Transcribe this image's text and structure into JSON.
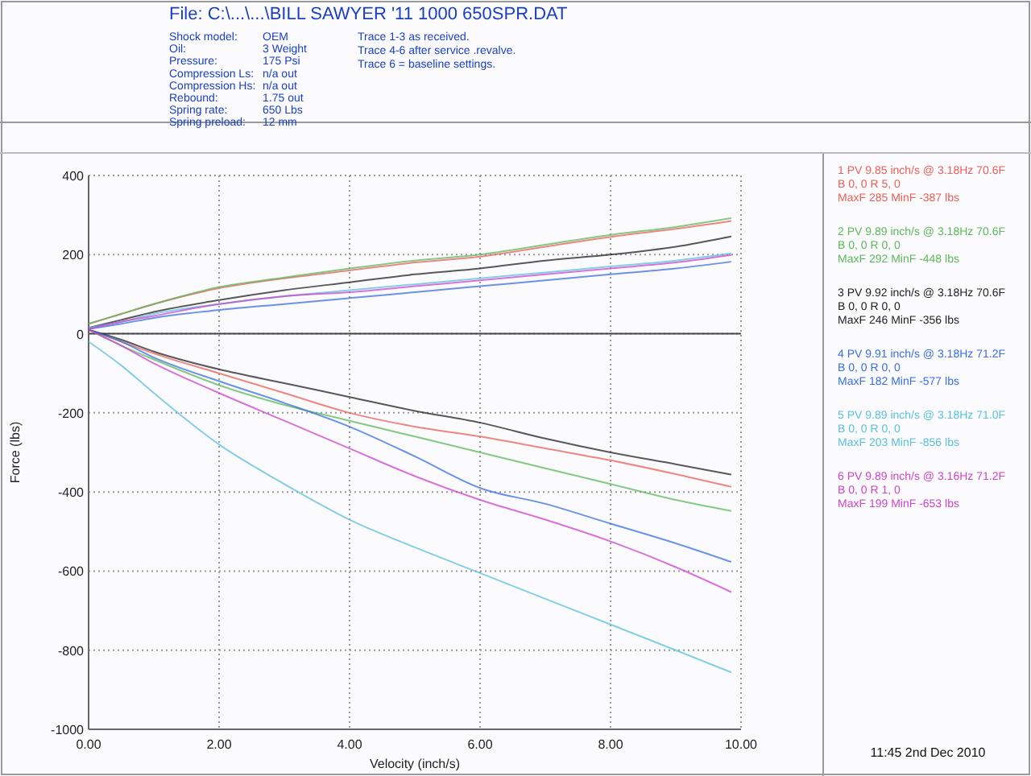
{
  "chart_data": {
    "type": "line",
    "title": "File: C:\\...\\...\\BILL SAWYER '11 1000 650SPR.DAT",
    "subtitle": "Trace 1-3 as received.\nTrace 4-6 after service .revalve.\nTrace 6 = baseline settings.",
    "xlabel": "Velocity (inch/s)",
    "ylabel": "Force (lbs)",
    "annotations": [
      "Shock model: OEM",
      "Oil: 3 Weight",
      "Pressure: 175 Psi",
      "Compression Ls: n/a out",
      "Compression Hs: n/a out",
      "Rebound: 1.75 out",
      "Spring rate: 650 Lbs",
      "Spring preload: 12 mm",
      "11:45  2nd Dec 2010"
    ],
    "xlim": [
      0,
      10
    ],
    "ylim": [
      -1000,
      400
    ],
    "xticks": [
      {
        "value": 0,
        "label": "0.00"
      },
      {
        "value": 2,
        "label": "2.00"
      },
      {
        "value": 4,
        "label": "4.00"
      },
      {
        "value": 6,
        "label": "6.00"
      },
      {
        "value": 8,
        "label": "8.00"
      },
      {
        "value": 10,
        "label": "10.00"
      }
    ],
    "yticks": [
      -1000,
      -800,
      -600,
      -400,
      -200,
      0,
      200,
      400
    ],
    "grid": true,
    "legend": "right",
    "marker": "none",
    "line_style": "solid",
    "ref_lines": [
      {
        "axis": "y",
        "value": 0,
        "color": "#444444"
      }
    ],
    "series": [
      {
        "name": "1 PV 9.85 inch/s @ 3.18Hz 70.6F\nB  0,  0   R  5,  0\nMaxF  285  MinF  -387 lbs",
        "color": "#e8605a",
        "x": [
          0,
          0.5,
          1,
          2,
          3,
          4,
          5,
          6,
          7,
          8,
          9,
          9.85
        ],
        "values": [
          25,
          50,
          75,
          115,
          140,
          160,
          180,
          195,
          220,
          245,
          265,
          285
        ]
      },
      {
        "color": "#e8605a",
        "x": [
          0,
          0.5,
          1,
          2,
          3,
          4,
          5,
          6,
          7,
          8,
          9,
          9.85
        ],
        "values": [
          10,
          -20,
          -50,
          -100,
          -150,
          -200,
          -235,
          -260,
          -290,
          -320,
          -355,
          -387
        ]
      },
      {
        "name": "2 PV 9.89 inch/s @ 3.18Hz 70.6F\nB  0,  0   R  0,  0\nMaxF  292  MinF  -448 lbs",
        "color": "#5cb85c",
        "x": [
          0,
          0.5,
          1,
          2,
          3,
          4,
          5,
          6,
          7,
          8,
          9,
          9.85
        ],
        "values": [
          25,
          50,
          75,
          118,
          142,
          165,
          185,
          200,
          225,
          250,
          270,
          292
        ]
      },
      {
        "color": "#5cb85c",
        "x": [
          0,
          0.5,
          1,
          2,
          3,
          4,
          5,
          6,
          7,
          8,
          9,
          9.85
        ],
        "values": [
          10,
          -30,
          -65,
          -130,
          -180,
          -220,
          -260,
          -300,
          -340,
          -380,
          -420,
          -448
        ]
      },
      {
        "name": "3 PV 9.92 inch/s @ 3.18Hz 70.6F\nB  0,  0   R  0,  0\nMaxF  246  MinF  -356 lbs",
        "color": "#222222",
        "x": [
          0,
          0.5,
          1,
          2,
          3,
          4,
          5,
          6,
          7,
          8,
          9,
          9.85
        ],
        "values": [
          15,
          35,
          55,
          85,
          110,
          130,
          150,
          165,
          185,
          200,
          220,
          246
        ]
      },
      {
        "color": "#222222",
        "x": [
          0,
          0.5,
          1,
          2,
          3,
          4,
          5,
          6,
          7,
          8,
          9,
          9.85
        ],
        "values": [
          10,
          -15,
          -45,
          -90,
          -125,
          -160,
          -195,
          -225,
          -265,
          -300,
          -330,
          -356
        ]
      },
      {
        "name": "4 PV 9.91 inch/s @ 3.18Hz 71.2F\nB  0,  0   R  0,  0\nMaxF  182  MinF  -577 lbs",
        "color": "#3a6fe0",
        "x": [
          0,
          0.5,
          1,
          2,
          3,
          4,
          5,
          6,
          7,
          8,
          9,
          9.85
        ],
        "values": [
          12,
          25,
          40,
          60,
          75,
          90,
          105,
          120,
          135,
          150,
          165,
          182
        ]
      },
      {
        "color": "#3a6fe0",
        "x": [
          0,
          0.5,
          1,
          2,
          3,
          4,
          5,
          6,
          7,
          8,
          9,
          9.85
        ],
        "values": [
          10,
          -20,
          -60,
          -120,
          -175,
          -235,
          -310,
          -390,
          -430,
          -480,
          -530,
          -577
        ]
      },
      {
        "name": "5 PV 9.89 inch/s @ 3.18Hz 71.0F\nB  0,  0   R  0,  0\nMaxF  203  MinF  -856 lbs",
        "color": "#5bc0de",
        "x": [
          0,
          0.5,
          1,
          2,
          3,
          4,
          5,
          6,
          7,
          8,
          9,
          9.85
        ],
        "values": [
          15,
          30,
          50,
          75,
          95,
          110,
          125,
          140,
          155,
          170,
          185,
          203
        ]
      },
      {
        "color": "#5bc0de",
        "x": [
          0,
          0.5,
          1,
          2,
          3,
          4,
          5,
          6,
          7,
          8,
          9,
          9.85
        ],
        "values": [
          -20,
          -80,
          -150,
          -280,
          -380,
          -470,
          -540,
          -605,
          -670,
          -735,
          -800,
          -856
        ]
      },
      {
        "name": "6 PV 9.89 inch/s @ 3.16Hz 71.2F\nB  0,  0   R  1,  0\nMaxF  199  MinF  -653 lbs",
        "color": "#cc44cc",
        "x": [
          0,
          0.5,
          1,
          2,
          3,
          4,
          5,
          6,
          7,
          8,
          9,
          9.85
        ],
        "values": [
          12,
          30,
          45,
          75,
          95,
          105,
          120,
          135,
          150,
          165,
          180,
          199
        ]
      },
      {
        "color": "#cc44cc",
        "x": [
          0,
          0.5,
          1,
          2,
          3,
          4,
          5,
          6,
          7,
          8,
          9,
          9.85
        ],
        "values": [
          10,
          -30,
          -75,
          -150,
          -220,
          -290,
          -360,
          -420,
          -470,
          -525,
          -590,
          -653
        ]
      }
    ]
  }
}
